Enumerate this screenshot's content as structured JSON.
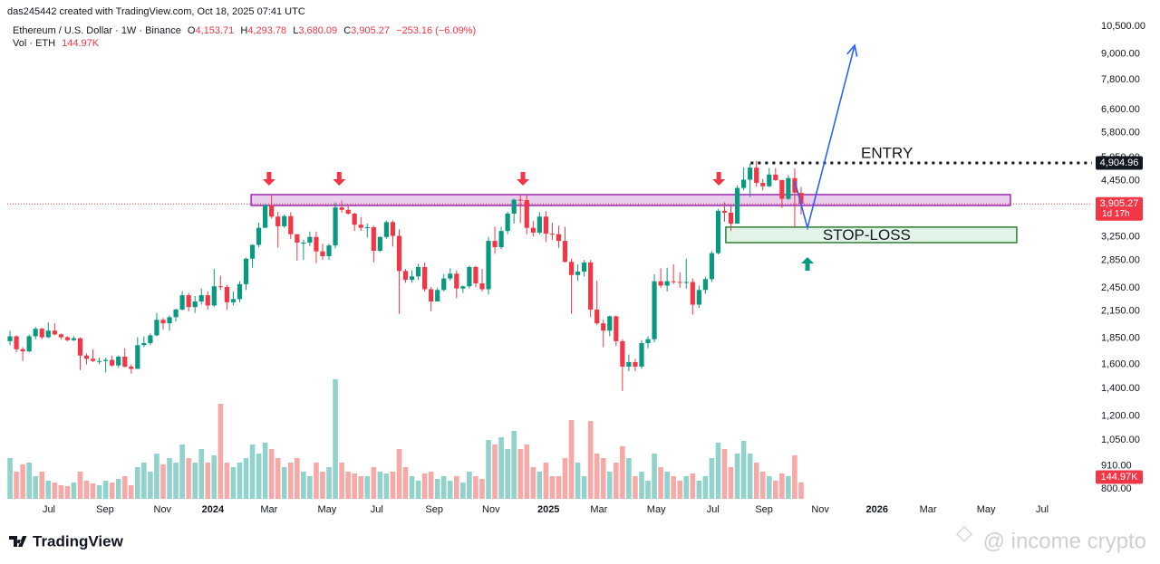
{
  "header": {
    "credit": "das245442 created with TradingView.com, Oct 18, 2025 07:41 UTC",
    "symbol": "Ethereum / U.S. Dollar · 1W · Binance",
    "ohlc_labels": [
      "O",
      "H",
      "L",
      "C"
    ],
    "ohlc_values": [
      "4,153.71",
      "4,293.78",
      "3,680.09",
      "3,905.27"
    ],
    "change": "−253.16 (−6.09%)",
    "volume_title": "Vol · ETH",
    "volume_value": "144.97K"
  },
  "footer": {
    "logo": "TradingView",
    "watermark": "@ income crypto"
  },
  "chart_data": {
    "type": "candlestick",
    "log_scale": true,
    "grid": false,
    "up_color": "#089981",
    "down_color": "#f23645",
    "volume_up_color": "#92d2cc",
    "volume_down_color": "#f7a9a7",
    "xlim": [
      -0.43,
      169.6
    ],
    "xticks": [
      {
        "value": 6.1,
        "label": "Jul"
      },
      {
        "value": 14.9,
        "label": "Sep"
      },
      {
        "value": 23.9,
        "label": "Nov"
      },
      {
        "value": 31.8,
        "label": "2024"
      },
      {
        "value": 40.6,
        "label": "Mar"
      },
      {
        "value": 49.7,
        "label": "May"
      },
      {
        "value": 57.5,
        "label": "Jul"
      },
      {
        "value": 66.5,
        "label": "Sep"
      },
      {
        "value": 75.4,
        "label": "Nov"
      },
      {
        "value": 84.4,
        "label": "2025"
      },
      {
        "value": 92.3,
        "label": "Mar"
      },
      {
        "value": 101.3,
        "label": "May"
      },
      {
        "value": 110.2,
        "label": "Jul"
      },
      {
        "value": 118.2,
        "label": "Sep"
      },
      {
        "value": 127.0,
        "label": "Nov"
      },
      {
        "value": 135.9,
        "label": "2026"
      },
      {
        "value": 143.9,
        "label": "Mar"
      },
      {
        "value": 153.0,
        "label": "May"
      },
      {
        "value": 161.8,
        "label": "Jul"
      }
    ],
    "ylim": [
      757,
      11670
    ],
    "yticks": [
      {
        "value": 800,
        "label": "800.00"
      },
      {
        "value": 910,
        "label": "910.00"
      },
      {
        "value": 1050,
        "label": "1,050.00"
      },
      {
        "value": 1200,
        "label": "1,200.00"
      },
      {
        "value": 1400,
        "label": "1,400.00"
      },
      {
        "value": 1600,
        "label": "1,600.00"
      },
      {
        "value": 1850,
        "label": "1,850.00"
      },
      {
        "value": 2150,
        "label": "2,150.00"
      },
      {
        "value": 2450,
        "label": "2,450.00"
      },
      {
        "value": 2850,
        "label": "2,850.00"
      },
      {
        "value": 3250,
        "label": "3,250.00"
      },
      {
        "value": 4450,
        "label": "4,450.00"
      },
      {
        "value": 5050,
        "label": "5,050.00"
      },
      {
        "value": 5800,
        "label": "5,800.00"
      },
      {
        "value": 6600,
        "label": "6,600.00"
      },
      {
        "value": 7800,
        "label": "7,800.00"
      },
      {
        "value": 9000,
        "label": "9,000.00"
      },
      {
        "value": 10500,
        "label": "10,500.00"
      }
    ],
    "open": [
      1820,
      1870,
      1740,
      1720,
      1870,
      1950,
      1860,
      1930,
      1890,
      1860,
      1830,
      1850,
      1680,
      1650,
      1630,
      1630,
      1640,
      1590,
      1670,
      1580,
      1560,
      1780,
      1800,
      1880,
      2050,
      2010,
      2080,
      2170,
      2350,
      2200,
      2270,
      2350,
      2220,
      2470,
      2460,
      2260,
      2300,
      2500,
      2880,
      3110,
      3420,
      3880,
      3640,
      3450,
      3650,
      3300,
      3150,
      3150,
      3250,
      3000,
      2920,
      3100,
      3830,
      3780,
      3700,
      3480,
      3420,
      3430,
      3010,
      3250,
      3530,
      3270,
      2690,
      2560,
      2610,
      2750,
      2430,
      2270,
      2420,
      2580,
      2650,
      2440,
      2470,
      2750,
      2510,
      2430,
      3180,
      3070,
      3360,
      3700,
      4000,
      3990,
      3420,
      3330,
      3640,
      3310,
      3300,
      3180,
      2830,
      2630,
      2680,
      2820,
      2170,
      2010,
      1930,
      2090,
      1820,
      1580,
      1620,
      1580,
      1800,
      1840,
      2540,
      2480,
      2540,
      2530,
      2520,
      2530,
      2230,
      2420,
      2570,
      2970,
      3760,
      3720,
      3500,
      4270,
      4470,
      4780,
      4390,
      4310,
      4600,
      4460,
      4020,
      4510,
      4153.71
    ],
    "high": [
      1930,
      1880,
      1760,
      1890,
      1970,
      1960,
      2020,
      2010,
      1900,
      1870,
      1870,
      1860,
      1700,
      1740,
      1660,
      1660,
      1680,
      1680,
      1750,
      1600,
      1860,
      1870,
      1900,
      2130,
      2070,
      2100,
      2180,
      2400,
      2380,
      2340,
      2440,
      2400,
      2720,
      2620,
      2490,
      2400,
      2540,
      2900,
      3120,
      3520,
      3900,
      4090,
      3740,
      3680,
      3730,
      3300,
      3200,
      3350,
      3350,
      3130,
      3130,
      3940,
      3980,
      3890,
      3720,
      3630,
      3500,
      3460,
      3260,
      3560,
      3560,
      3390,
      2720,
      2700,
      2800,
      2820,
      2460,
      2450,
      2640,
      2730,
      2700,
      2480,
      2770,
      2770,
      2720,
      3250,
      3440,
      3440,
      3740,
      4020,
      4110,
      4110,
      3550,
      3730,
      3750,
      3520,
      3460,
      3440,
      2880,
      2790,
      2860,
      2860,
      2550,
      2050,
      2100,
      2100,
      1840,
      1690,
      1650,
      1830,
      1870,
      2640,
      2730,
      2740,
      2790,
      2670,
      2880,
      2580,
      2480,
      2600,
      3000,
      3800,
      3940,
      3860,
      4330,
      4790,
      4890,
      4960,
      4490,
      4770,
      4770,
      4470,
      4580,
      4760,
      4293.78
    ],
    "low": [
      1780,
      1710,
      1630,
      1710,
      1840,
      1840,
      1850,
      1880,
      1840,
      1820,
      1820,
      1550,
      1600,
      1620,
      1600,
      1530,
      1580,
      1570,
      1570,
      1520,
      1560,
      1760,
      1780,
      1870,
      1940,
      1930,
      2030,
      2160,
      2150,
      2130,
      2230,
      2170,
      2200,
      2420,
      2170,
      2220,
      2260,
      2420,
      2740,
      3070,
      3420,
      3600,
      3060,
      3420,
      3210,
      2850,
      2860,
      3090,
      2810,
      2860,
      2860,
      3050,
      3720,
      3680,
      3360,
      3360,
      3240,
      2820,
      2990,
      3220,
      3080,
      2120,
      2520,
      2520,
      2560,
      2400,
      2150,
      2270,
      2400,
      2550,
      2310,
      2380,
      2440,
      2460,
      2400,
      2360,
      2960,
      3040,
      3300,
      3500,
      3510,
      3300,
      3260,
      3300,
      3160,
      3200,
      3060,
      2820,
      2120,
      2550,
      2610,
      2080,
      1990,
      1760,
      1870,
      1770,
      1380,
      1540,
      1540,
      1560,
      1750,
      1810,
      2450,
      2400,
      2500,
      2450,
      2440,
      2110,
      2190,
      2370,
      2530,
      2950,
      3540,
      3360,
      3500,
      4210,
      4060,
      4300,
      4210,
      4290,
      4440,
      3820,
      3990,
      3440,
      3680.09
    ],
    "close": [
      1870,
      1740,
      1720,
      1870,
      1950,
      1860,
      1930,
      1890,
      1860,
      1830,
      1850,
      1680,
      1650,
      1630,
      1630,
      1640,
      1590,
      1670,
      1580,
      1560,
      1780,
      1800,
      1880,
      2050,
      2010,
      2080,
      2170,
      2350,
      2200,
      2270,
      2350,
      2220,
      2470,
      2460,
      2260,
      2300,
      2500,
      2880,
      3110,
      3420,
      3880,
      3640,
      3450,
      3650,
      3300,
      3150,
      3150,
      3250,
      3000,
      2920,
      3100,
      3830,
      3780,
      3700,
      3480,
      3420,
      3430,
      3010,
      3250,
      3530,
      3270,
      2690,
      2560,
      2610,
      2750,
      2430,
      2270,
      2420,
      2580,
      2650,
      2440,
      2470,
      2750,
      2510,
      2430,
      3180,
      3070,
      3360,
      3700,
      4000,
      3990,
      3420,
      3330,
      3640,
      3310,
      3300,
      3180,
      2830,
      2630,
      2680,
      2820,
      2170,
      2010,
      1930,
      2090,
      1820,
      1580,
      1620,
      1580,
      1800,
      1840,
      2540,
      2480,
      2540,
      2530,
      2520,
      2530,
      2230,
      2420,
      2570,
      2970,
      3760,
      3720,
      3500,
      4270,
      4470,
      4780,
      4390,
      4310,
      4600,
      4460,
      4020,
      4510,
      4158.43,
      3905.27
    ],
    "volume": [
      360000,
      240000,
      304000,
      320000,
      200000,
      240000,
      160000,
      144000,
      120000,
      112000,
      144000,
      240000,
      160000,
      136000,
      120000,
      160000,
      144000,
      176000,
      200000,
      120000,
      280000,
      320000,
      240000,
      400000,
      304000,
      360000,
      320000,
      480000,
      360000,
      320000,
      440000,
      320000,
      384000,
      840000,
      320000,
      280000,
      320000,
      360000,
      480000,
      400000,
      496000,
      440000,
      360000,
      280000,
      320000,
      360000,
      240000,
      200000,
      320000,
      240000,
      280000,
      1056000,
      320000,
      240000,
      224000,
      200000,
      200000,
      280000,
      240000,
      224000,
      240000,
      440000,
      280000,
      200000,
      160000,
      224000,
      240000,
      176000,
      200000,
      160000,
      200000,
      144000,
      240000,
      200000,
      176000,
      520000,
      480000,
      544000,
      440000,
      600000,
      440000,
      480000,
      280000,
      240000,
      320000,
      200000,
      200000,
      360000,
      696000,
      320000,
      200000,
      688000,
      400000,
      360000,
      240000,
      320000,
      464000,
      360000,
      200000,
      240000,
      160000,
      400000,
      280000,
      240000,
      200000,
      160000,
      200000,
      224000,
      160000,
      200000,
      360000,
      496000,
      440000,
      280000,
      400000,
      512000,
      400000,
      320000,
      240000,
      200000,
      160000,
      224000,
      200000,
      384000,
      144970
    ],
    "last_price": {
      "value": 3905.27,
      "label": "3,905.27",
      "countdown": "1d 17h"
    },
    "last_volume_label": "144.97K",
    "entry_line": {
      "value": 4904.96,
      "label": "4,904.96",
      "start": 116.1,
      "text": "ENTRY"
    },
    "zones": [
      {
        "low": 3872,
        "high": 4114,
        "start": 37.8,
        "end": 156.8,
        "fill": "#e1bee7",
        "stroke": "#9c27b0"
      },
      {
        "low": 3150,
        "high": 3433,
        "start": 112.2,
        "end": 157.8,
        "fill": "#d7f0df",
        "stroke": "#2e7d32",
        "text": "STOP-LOSS"
      }
    ],
    "markers": [
      {
        "x": 40.6,
        "y": 4325,
        "direction": "down",
        "color": "#f23645"
      },
      {
        "x": 51.6,
        "y": 4325,
        "direction": "down",
        "color": "#f23645"
      },
      {
        "x": 80.4,
        "y": 4325,
        "direction": "down",
        "color": "#f23645"
      },
      {
        "x": 111.1,
        "y": 4325,
        "direction": "down",
        "color": "#f23645"
      },
      {
        "x": 125.0,
        "y": 2905,
        "direction": "up",
        "color": "#089981"
      }
    ],
    "projection": {
      "x": [
        123,
        125,
        132.4
      ],
      "y": [
        4437,
        3420,
        9446
      ],
      "color": "#2962ff"
    }
  }
}
